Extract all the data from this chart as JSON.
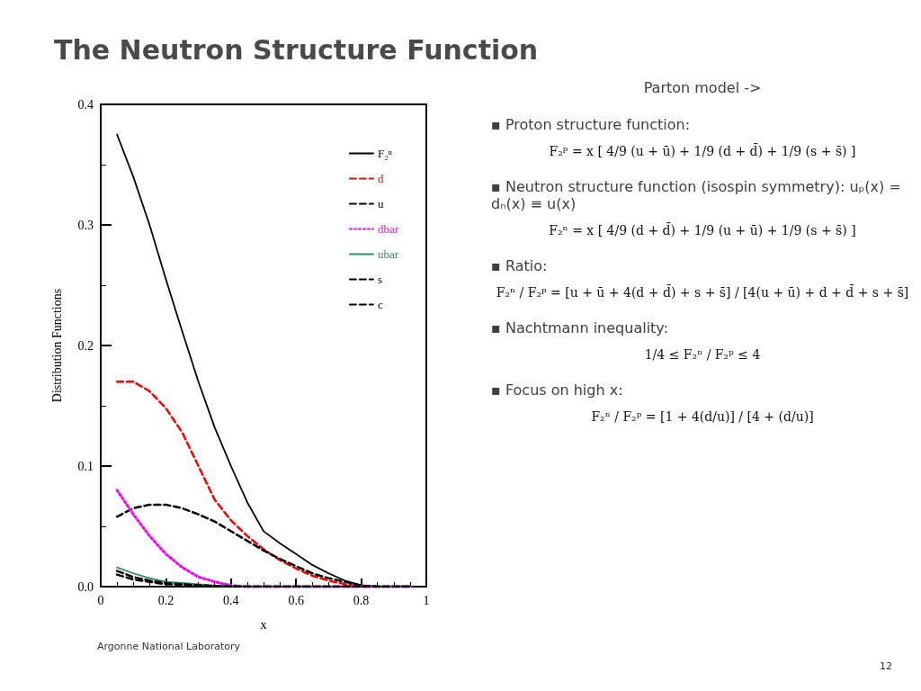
{
  "chart_data": {
    "type": "line",
    "title": "The Neutron Structure Function",
    "xlabel": "x",
    "ylabel": "Distribution Functions",
    "xlim": [
      0,
      1
    ],
    "xticks": [
      0,
      0.2,
      0.4,
      0.6,
      0.8,
      1
    ],
    "ylim": [
      0,
      0.4
    ],
    "yticks": [
      {
        "value": 0,
        "label": "0.0"
      },
      0.1,
      0.2,
      0.3,
      0.4
    ],
    "grid": false,
    "legend": "top right",
    "marker": "none",
    "x": [
      0.05,
      0.1,
      0.15,
      0.2,
      0.25,
      0.3,
      0.35,
      0.4,
      0.45,
      0.5,
      0.55,
      0.6,
      0.65,
      0.7,
      0.75,
      0.8,
      0.85,
      0.9,
      0.95
    ],
    "series": [
      {
        "name": "F₂ⁿ",
        "color": "#000000",
        "line_style": "solid",
        "values": [
          0.375,
          0.34,
          0.3,
          0.255,
          0.212,
          0.17,
          0.132,
          0.1,
          0.07,
          0.046,
          0.036,
          0.027,
          0.018,
          0.011,
          0.005,
          0.001,
          0,
          0,
          0
        ]
      },
      {
        "name": "d",
        "color": "#ff0000",
        "line_style": "dashed",
        "values": [
          0.17,
          0.17,
          0.162,
          0.148,
          0.128,
          0.1,
          0.072,
          0.055,
          0.042,
          0.031,
          0.022,
          0.015,
          0.009,
          0.005,
          0.002,
          0,
          0,
          null,
          null
        ]
      },
      {
        "name": "u",
        "color": "#000000",
        "line_style": "dashed",
        "values": [
          0.058,
          0.065,
          0.068,
          0.068,
          0.065,
          0.06,
          0.054,
          0.046,
          0.038,
          0.03,
          0.023,
          0.017,
          0.011,
          0.007,
          0.004,
          0.001,
          0,
          0,
          0
        ]
      },
      {
        "name": "dbar",
        "color": "#ff00ff",
        "line_style": "dotted",
        "values": [
          0.08,
          0.06,
          0.042,
          0.027,
          0.016,
          0.008,
          0.004,
          0.001,
          0,
          0,
          0,
          0,
          0,
          0,
          0,
          0,
          0,
          0,
          0
        ]
      },
      {
        "name": "ubar",
        "color": "#2e8b6e",
        "line_style": "solid",
        "values": [
          0.016,
          0.011,
          0.007,
          0.004,
          0.003,
          0.002,
          0.001,
          0.0005,
          0,
          0,
          null,
          null,
          null,
          null,
          null,
          null,
          null,
          null,
          null
        ]
      },
      {
        "name": "s",
        "color": "#000000",
        "line_style": "dashed",
        "values": [
          0.01,
          0.006,
          0.004,
          0.002,
          0.0015,
          0.001,
          0.0005,
          0,
          0,
          0,
          0,
          0,
          0,
          0,
          0,
          0,
          0,
          0,
          0
        ]
      },
      {
        "name": "c",
        "color": "#000000",
        "line_style": "dashed",
        "values": [
          0.013,
          0.008,
          0.005,
          0.003,
          0.002,
          0.001,
          0.0005,
          0,
          0,
          0,
          0,
          0,
          0,
          0,
          0,
          0,
          0,
          0,
          0
        ]
      }
    ],
    "annotations": [
      "Parton model ->",
      "▪   Proton structure function:",
      "F₂ᵖ = x [ 4/9 (u + ū) + 1/9 (d + d̄) + 1/9 (s + s̄) ]",
      "▪   Neutron structure function (isospin symmetry): uₚ(x) = dₙ(x) ≡ u(x)",
      "F₂ⁿ = x [ 4/9 (d + d̄) + 1/9 (u + ū) + 1/9 (s + s̄) ]",
      "▪   Ratio:",
      "F₂ⁿ / F₂ᵖ = [u + ū + 4(d + d̄) + s + s̄] / [4(u + ū) + d + d̄ + s + s̄]",
      "▪   Nachtmann inequality:",
      "1/4 ≤ F₂ⁿ / F₂ᵖ ≤ 4",
      "▪   Focus on high x:",
      "F₂ⁿ / F₂ᵖ = [1 + 4(d/u)] / [4 + (d/u)]",
      "Argonne National Laboratory",
      "12"
    ]
  }
}
